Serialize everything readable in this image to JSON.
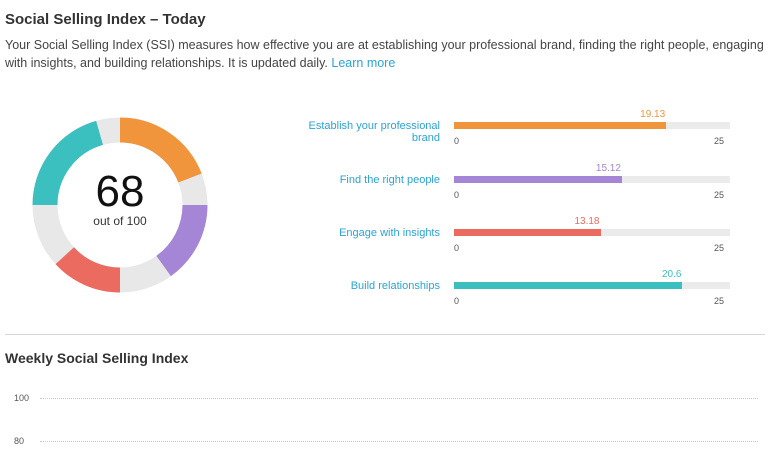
{
  "header": {
    "title": "Social Selling Index – Today",
    "description": "Your Social Selling Index (SSI) measures how effective you are at establishing your professional brand, finding the right people, engaging with insights, and building relationships. It is updated daily.",
    "learn_more": "Learn more"
  },
  "score": {
    "value": "68",
    "subtitle": "out of 100"
  },
  "bar_scale": {
    "min": "0",
    "max": "25"
  },
  "metrics": [
    {
      "label": "Establish your professional brand",
      "value": "19.13",
      "color": "#f0953c"
    },
    {
      "label": "Find the right people",
      "value": "15.12",
      "color": "#a585d6"
    },
    {
      "label": "Engage with insights",
      "value": "13.18",
      "color": "#eb6b60"
    },
    {
      "label": "Build relationships",
      "value": "20.6",
      "color": "#3bbfbf"
    }
  ],
  "colors": {
    "accent": "#2aa4d5",
    "donut_track": "#e8e8e8"
  },
  "weekly": {
    "title": "Weekly Social Selling Index",
    "y_ticks": [
      "100",
      "80"
    ]
  }
}
